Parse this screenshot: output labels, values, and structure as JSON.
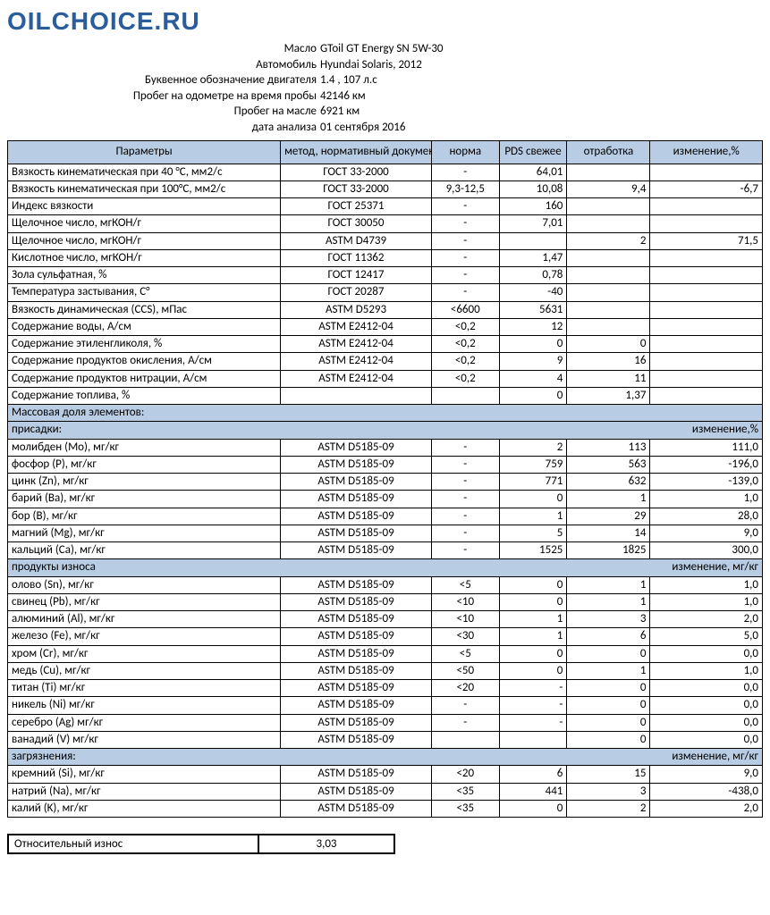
{
  "logo": "OILCHOICE.RU",
  "meta": [
    {
      "label": "Масло",
      "value": "GToil GT Energy SN 5W-30"
    },
    {
      "label": "Автомобиль",
      "value": "Hyundai Solaris, 2012"
    },
    {
      "label": "Буквенное обозначение двигателя",
      "value": "1.4 , 107 л.с"
    },
    {
      "label": "Пробег на одометре на время пробы",
      "value": "42146 км"
    },
    {
      "label": "Пробег на масле",
      "value": "6921  км"
    },
    {
      "label": "дата анализа",
      "value": "01 сентября 2016"
    }
  ],
  "headers": {
    "param": "Параметры",
    "method": "метод, нормативный документ",
    "norm": "норма",
    "pds": "PDS свежее",
    "work": "отработка",
    "chg": "изменение,%"
  },
  "rows1": [
    {
      "p": "Вязкость кинематическая при 40 °С, мм2/с",
      "m": "ГОСТ 33-2000",
      "n": "-",
      "f": "64,01",
      "w": "",
      "c": ""
    },
    {
      "p": "Вязкость кинематическая при 100°С, мм2/с",
      "m": "ГОСТ 33-2000",
      "n": "9,3-12,5",
      "f": "10,08",
      "w": "9,4",
      "c": "-6,7"
    },
    {
      "p": "Индекс вязкости",
      "m": "ГОСТ 25371",
      "n": "-",
      "f": "160",
      "w": "",
      "c": ""
    },
    {
      "p": "Щелочное число, мгКОН/г",
      "m": "ГОСТ 30050",
      "n": "-",
      "f": "7,01",
      "w": "",
      "c": ""
    },
    {
      "p": "Щелочное число, мгКОН/г",
      "m": "ASTM D4739",
      "n": "-",
      "f": "",
      "w": "2",
      "c": "71,5"
    },
    {
      "p": "Кислотное число, мгКОН/г",
      "m": "ГОСТ 11362",
      "n": "-",
      "f": "1,47",
      "w": "",
      "c": ""
    },
    {
      "p": "Зола сульфатная, %",
      "m": "ГОСТ 12417",
      "n": "-",
      "f": "0,78",
      "w": "",
      "c": ""
    },
    {
      "p": "Температура застывания, С°",
      "m": "ГОСТ 20287",
      "n": "-",
      "f": "-40",
      "w": "",
      "c": ""
    },
    {
      "p": "Вязкость динамическая (CCS), мПас",
      "m": "ASTM D5293",
      "n": "<6600",
      "f": "5631",
      "w": "",
      "c": ""
    },
    {
      "p": "Содержание воды, А/см",
      "m": "ASTM E2412-04",
      "n": "<0,2",
      "f": "12",
      "w": "",
      "c": ""
    },
    {
      "p": "Содержание этиленгликоля, %",
      "m": "ASTM E2412-04",
      "n": "<0,2",
      "f": "0",
      "w": "0",
      "c": ""
    },
    {
      "p": "Содержание продуктов окисления, А/см",
      "m": "ASTM E2412-04",
      "n": "<0,2",
      "f": "9",
      "w": "16",
      "c": ""
    },
    {
      "p": "Содержание продуктов нитрации, А/см",
      "m": "ASTM E2412-04",
      "n": "<0,2",
      "f": "4",
      "w": "11",
      "c": ""
    },
    {
      "p": "Содержание топлива, %",
      "m": "",
      "n": "",
      "f": "0",
      "w": "1,37",
      "c": ""
    }
  ],
  "sec_mass": "Массовая доля элементов:",
  "sec_additives": {
    "left": "присадки:",
    "right": "изменение,%"
  },
  "rows_additives": [
    {
      "p": "молибден (Mo), мг/кг",
      "m": "ASTM D5185-09",
      "n": "-",
      "f": "2",
      "w": "113",
      "c": "111,0"
    },
    {
      "p": "фосфор (P), мг/кг",
      "m": "ASTM D5185-09",
      "n": "-",
      "f": "759",
      "w": "563",
      "c": "-196,0"
    },
    {
      "p": "цинк (Zn), мг/кг",
      "m": "ASTM D5185-09",
      "n": "-",
      "f": "771",
      "w": "632",
      "c": "-139,0"
    },
    {
      "p": "барий (Ba), мг/кг",
      "m": "ASTM D5185-09",
      "n": "-",
      "f": "0",
      "w": "1",
      "c": "1,0"
    },
    {
      "p": "бор (B), мг/кг",
      "m": "ASTM D5185-09",
      "n": "-",
      "f": "1",
      "w": "29",
      "c": "28,0"
    },
    {
      "p": "магний (Mg), мг/кг",
      "m": "ASTM D5185-09",
      "n": "-",
      "f": "5",
      "w": "14",
      "c": "9,0"
    },
    {
      "p": "кальций (Ca), мг/кг",
      "m": "ASTM D5185-09",
      "n": "-",
      "f": "1525",
      "w": "1825",
      "c": "300,0"
    }
  ],
  "sec_wear": {
    "left": "продукты износа",
    "right": "изменение, мг/кг"
  },
  "rows_wear": [
    {
      "p": "олово (Sn), мг/кг",
      "m": "ASTM D5185-09",
      "n": "<5",
      "f": "0",
      "w": "1",
      "c": "1,0"
    },
    {
      "p": "свинец (Pb), мг/кг",
      "m": "ASTM D5185-09",
      "n": "<10",
      "f": "0",
      "w": "1",
      "c": "1,0"
    },
    {
      "p": "алюминий (Al), мг/кг",
      "m": "ASTM D5185-09",
      "n": "<10",
      "f": "1",
      "w": "3",
      "c": "2,0"
    },
    {
      "p": "железо (Fe), мг/кг",
      "m": "ASTM D5185-09",
      "n": "<30",
      "f": "1",
      "w": "6",
      "c": "5,0"
    },
    {
      "p": "хром (Cr), мг/кг",
      "m": "ASTM D5185-09",
      "n": "<5",
      "f": "0",
      "w": "0",
      "c": "0,0"
    },
    {
      "p": "медь (Cu), мг/кг",
      "m": "ASTM D5185-09",
      "n": "<50",
      "f": "0",
      "w": "1",
      "c": "1,0"
    },
    {
      "p": "титан (Ti) мг/кг",
      "m": "ASTM D5185-09",
      "n": "<20",
      "f": "-",
      "w": "0",
      "c": "0,0"
    },
    {
      "p": "никель (Ni) мг/кг",
      "m": "ASTM D5185-09",
      "n": "-",
      "f": "-",
      "w": "0",
      "c": "0,0"
    },
    {
      "p": "серебро (Ag) мг/кг",
      "m": "ASTM D5185-09",
      "n": "-",
      "f": "-",
      "w": "0",
      "c": "0,0"
    },
    {
      "p": "ванадий (V) мг/кг",
      "m": "ASTM D5185-09",
      "n": "",
      "f": "",
      "w": "0",
      "c": "0,0"
    }
  ],
  "sec_cont": {
    "left": "загрязнения:",
    "right": "изменение, мг/кг"
  },
  "rows_cont": [
    {
      "p": "кремний (Si), мг/кг",
      "m": "ASTM D5185-09",
      "n": "<20",
      "f": "6",
      "w": "15",
      "c": "9,0"
    },
    {
      "p": "натрий (Na), мг/кг",
      "m": "ASTM D5185-09",
      "n": "<35",
      "f": "441",
      "w": "3",
      "c": "-438,0"
    },
    {
      "p": "калий (K), мг/кг",
      "m": "ASTM D5185-09",
      "n": "<35",
      "f": "0",
      "w": "2",
      "c": "2,0"
    }
  ],
  "rel_wear": {
    "label": "Относительный износ",
    "value": "3,03"
  },
  "colors": {
    "header_bg": "#b8cce4",
    "logo": "#2b5c9c"
  }
}
